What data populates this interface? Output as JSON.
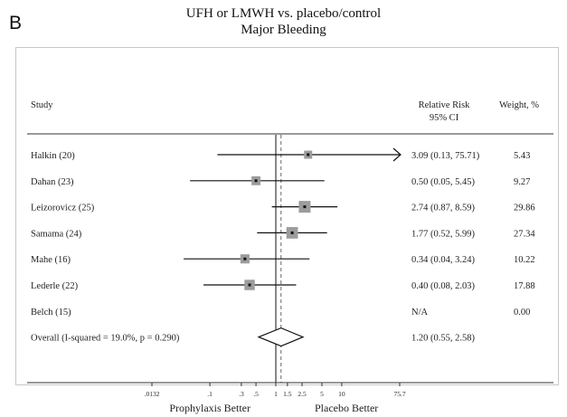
{
  "panel_label": "B",
  "title_line1": "UFH or LMWH vs. placebo/control",
  "title_line2": "Major Bleeding",
  "headers": {
    "study": "Study",
    "rr_line1": "Relative Risk",
    "rr_line2": "95% CI",
    "weight": "Weight, %"
  },
  "chart_data": {
    "type": "forest",
    "x_scale": "log",
    "title": "UFH or LMWH vs. placebo/control — Major Bleeding",
    "xlabel_left": "Prophylaxis Better",
    "xlabel_right": "Placebo Better",
    "reference_line": 1,
    "overall_line": 1.2,
    "ticks": [
      {
        "value": 0.0132,
        "label": ".0132"
      },
      {
        "value": 0.1,
        "label": ".1"
      },
      {
        "value": 0.3,
        "label": ".3"
      },
      {
        "value": 0.5,
        "label": ".5"
      },
      {
        "value": 1,
        "label": "1"
      },
      {
        "value": 1.5,
        "label": "1.5"
      },
      {
        "value": 2.5,
        "label": "2.5"
      },
      {
        "value": 5,
        "label": "5"
      },
      {
        "value": 10,
        "label": "10"
      },
      {
        "value": 75.7,
        "label": "75.7"
      }
    ],
    "studies": [
      {
        "name": "Halkin (20)",
        "rr": 3.09,
        "lower": 0.13,
        "upper": 75.71,
        "ci_text": "3.09 (0.13, 75.71)",
        "weight": 5.43,
        "weight_text": "5.43",
        "arrow_right": true
      },
      {
        "name": "Dahan (23)",
        "rr": 0.5,
        "lower": 0.05,
        "upper": 5.45,
        "ci_text": "0.50 (0.05, 5.45)",
        "weight": 9.27,
        "weight_text": "9.27"
      },
      {
        "name": "Leizorovicz (25)",
        "rr": 2.74,
        "lower": 0.87,
        "upper": 8.59,
        "ci_text": "2.74 (0.87, 8.59)",
        "weight": 29.86,
        "weight_text": "29.86"
      },
      {
        "name": "Samama (24)",
        "rr": 1.77,
        "lower": 0.52,
        "upper": 5.99,
        "ci_text": "1.77 (0.52, 5.99)",
        "weight": 27.34,
        "weight_text": "27.34"
      },
      {
        "name": "Mahe (16)",
        "rr": 0.34,
        "lower": 0.04,
        "upper": 3.24,
        "ci_text": "0.34 (0.04, 3.24)",
        "weight": 10.22,
        "weight_text": "10.22"
      },
      {
        "name": "Lederle (22)",
        "rr": 0.4,
        "lower": 0.08,
        "upper": 2.03,
        "ci_text": "0.40 (0.08, 2.03)",
        "weight": 17.88,
        "weight_text": "17.88"
      },
      {
        "name": "Belch (15)",
        "rr": null,
        "lower": null,
        "upper": null,
        "ci_text": "N/A",
        "weight": 0,
        "weight_text": "0.00"
      }
    ],
    "overall": {
      "name": "Overall  (I-squared = 19.0%, p = 0.290)",
      "rr": 1.2,
      "lower": 0.55,
      "upper": 2.58,
      "ci_text": "1.20 (0.55, 2.58)"
    }
  }
}
